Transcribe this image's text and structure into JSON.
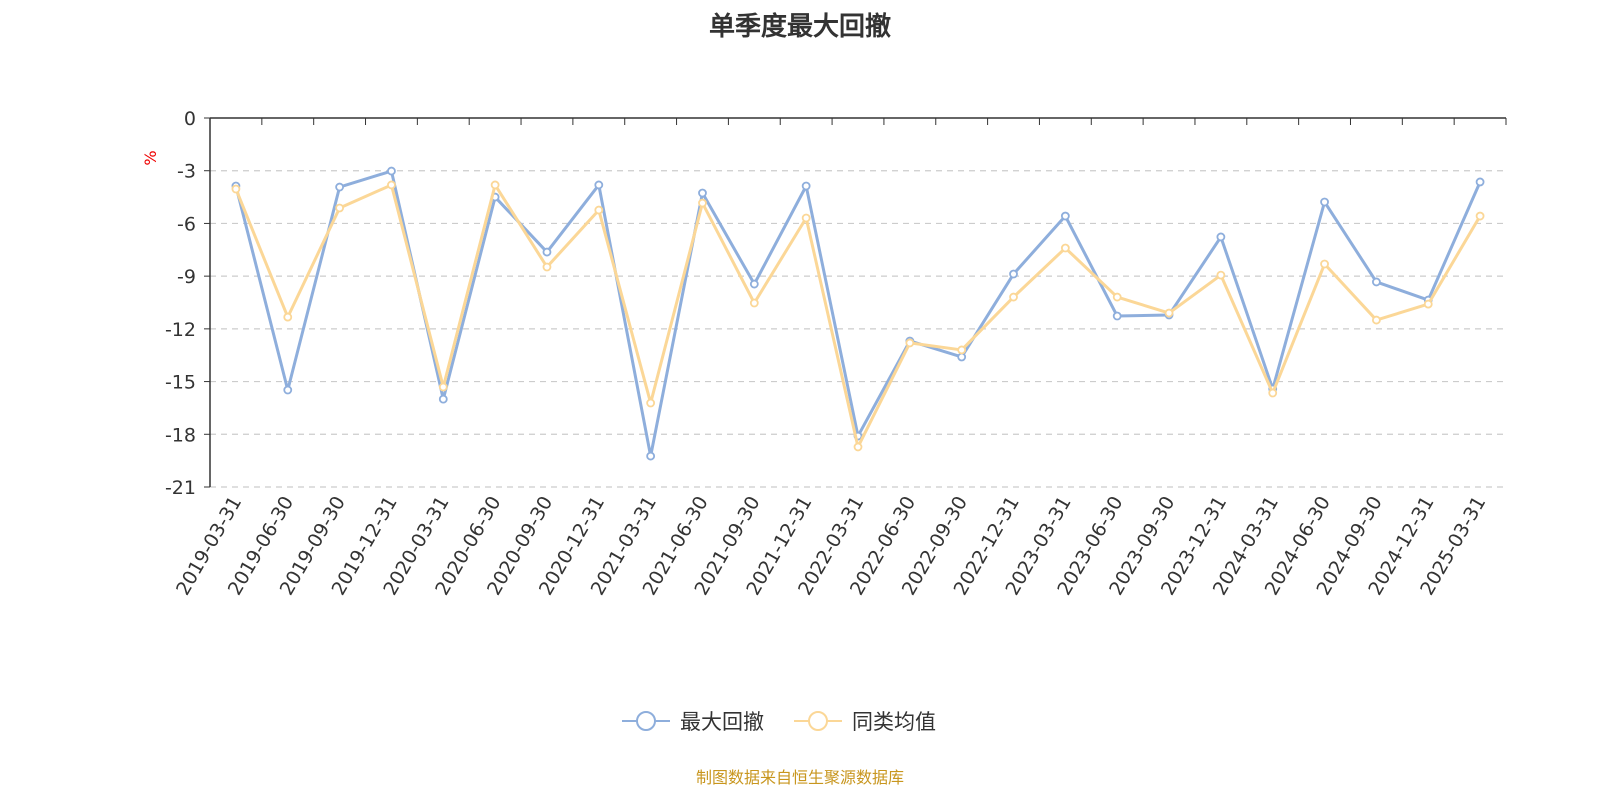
{
  "chart_data": {
    "type": "line",
    "title": "单季度最大回撤",
    "ylabel": "%",
    "xlabel": "",
    "ylim": [
      -21,
      0
    ],
    "yticks": [
      0,
      -3,
      -6,
      -9,
      -12,
      -15,
      -18,
      -21
    ],
    "grid": true,
    "legend_position": "bottom",
    "categories": [
      "2019-03-31",
      "2019-06-30",
      "2019-09-30",
      "2019-12-31",
      "2020-03-31",
      "2020-06-30",
      "2020-09-30",
      "2020-12-31",
      "2021-03-31",
      "2021-06-30",
      "2021-09-30",
      "2021-12-31",
      "2022-03-31",
      "2022-06-30",
      "2022-09-30",
      "2022-12-31",
      "2023-03-31",
      "2023-06-30",
      "2023-09-30",
      "2023-12-31",
      "2024-03-31",
      "2024-06-30",
      "2024-09-30",
      "2024-12-31",
      "2025-03-31"
    ],
    "series": [
      {
        "name": "最大回撤",
        "color": "#8eaedc",
        "values": [
          -3.87,
          -15.48,
          -3.93,
          -3.02,
          -16.0,
          -4.5,
          -7.63,
          -3.81,
          -19.24,
          -4.27,
          -9.45,
          -3.87,
          -18.1,
          -12.69,
          -13.6,
          -8.88,
          -5.58,
          -11.27,
          -11.21,
          -6.77,
          -15.42,
          -4.78,
          -9.33,
          -10.36,
          -3.64
        ]
      },
      {
        "name": "同类均值",
        "color": "#fbd797",
        "values": [
          -4.04,
          -11.33,
          -5.12,
          -3.81,
          -15.31,
          -3.81,
          -8.48,
          -5.24,
          -16.22,
          -4.84,
          -10.53,
          -5.69,
          -18.72,
          -12.8,
          -13.2,
          -10.19,
          -7.4,
          -10.19,
          -11.1,
          -8.94,
          -15.65,
          -8.31,
          -11.5,
          -10.59,
          -5.58
        ]
      }
    ]
  },
  "footer": "制图数据来自恒生聚源数据库"
}
